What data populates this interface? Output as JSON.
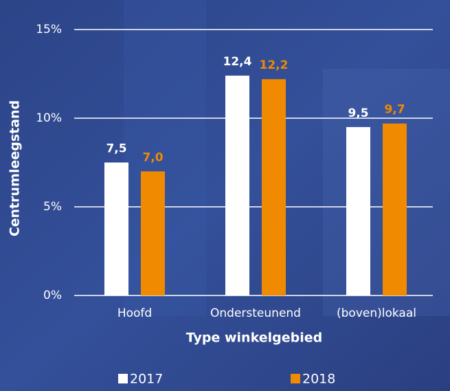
{
  "chart_data": {
    "type": "bar",
    "x_label": "Type winkelgebied",
    "y_label": "Centrumleegstand",
    "categories": [
      "Hoofd",
      "Ondersteunend",
      "(boven)lokaal"
    ],
    "series": [
      {
        "name": "2017",
        "color": "#ffffff",
        "values": [
          7.5,
          12.4,
          9.5
        ],
        "value_labels": [
          "7,5",
          "12,4",
          "9,5"
        ]
      },
      {
        "name": "2018",
        "color": "#f08a00",
        "values": [
          7.0,
          12.2,
          9.7
        ],
        "value_labels": [
          "7,0",
          "12,2",
          "9,7"
        ]
      }
    ],
    "ylim": [
      0,
      15
    ],
    "yticks": [
      {
        "value": 0,
        "label": "0%"
      },
      {
        "value": 5,
        "label": "5%"
      },
      {
        "value": 10,
        "label": "10%"
      },
      {
        "value": 15,
        "label": "15%"
      }
    ],
    "grid": true,
    "legend": "bottom"
  }
}
